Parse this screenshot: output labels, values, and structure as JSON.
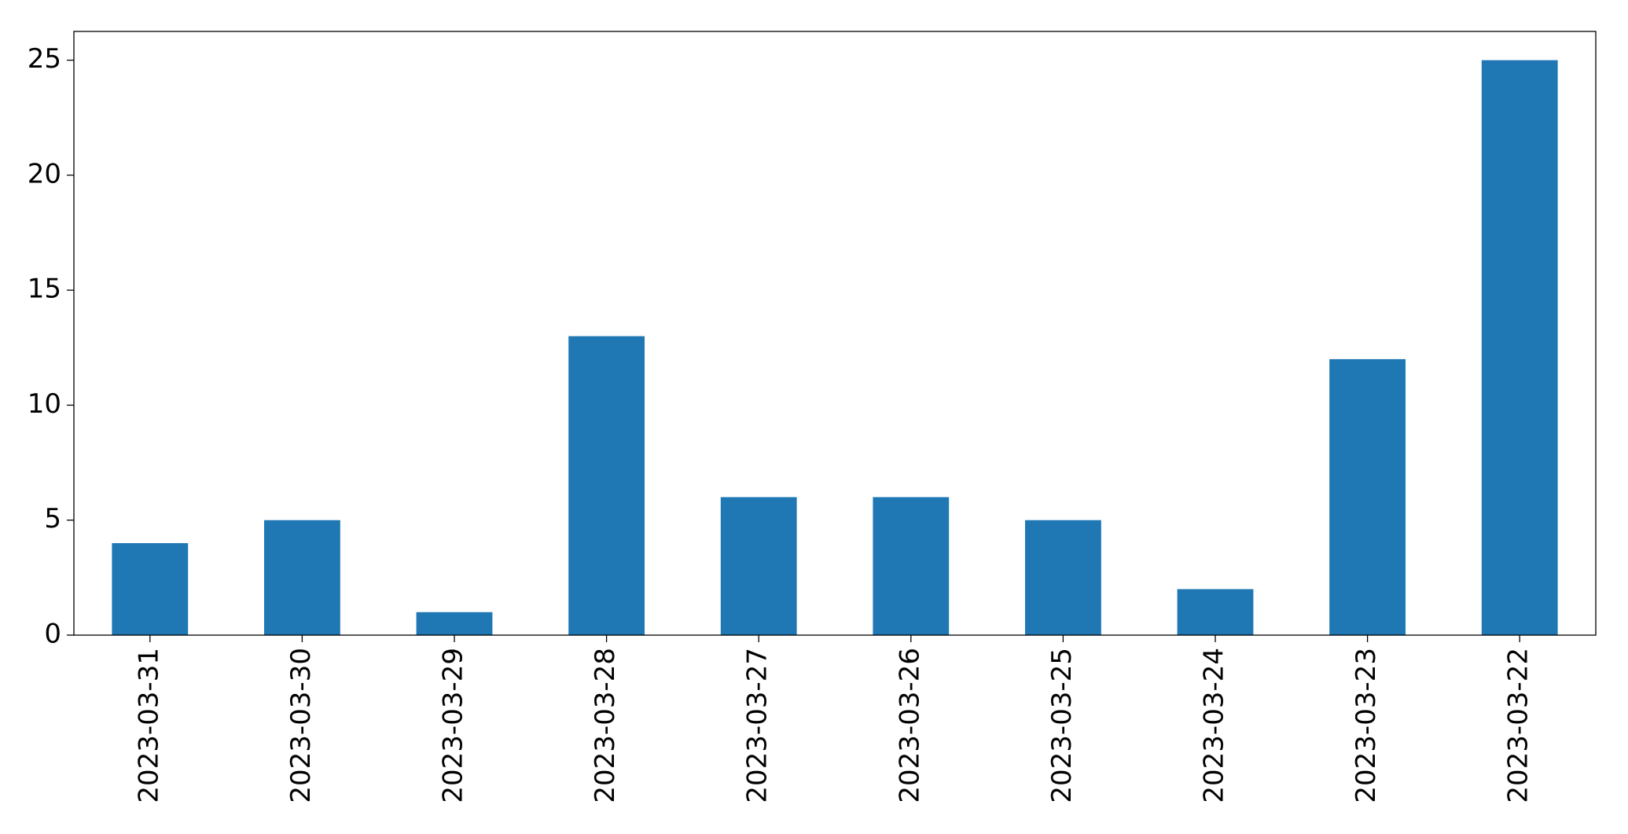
{
  "chart_data": {
    "type": "bar",
    "categories": [
      "2023-03-31",
      "2023-03-30",
      "2023-03-29",
      "2023-03-28",
      "2023-03-27",
      "2023-03-26",
      "2023-03-25",
      "2023-03-24",
      "2023-03-23",
      "2023-03-22"
    ],
    "values": [
      4,
      5,
      1,
      13,
      6,
      6,
      5,
      2,
      12,
      25
    ],
    "color": "#1f77b4",
    "ylim": [
      0,
      26.25
    ],
    "yticks": [
      0,
      5,
      10,
      15,
      20,
      25
    ],
    "grid": false
  }
}
